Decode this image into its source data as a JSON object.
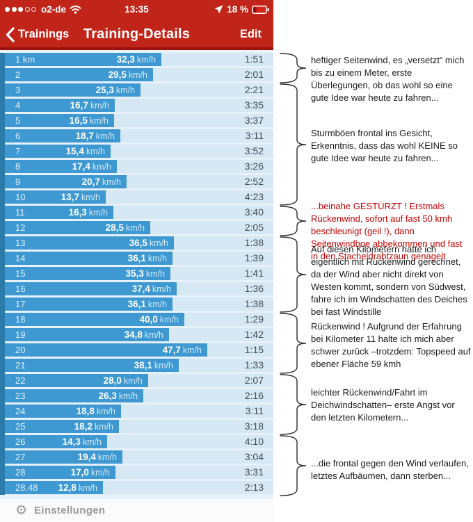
{
  "status_bar": {
    "signal_dots_filled": 3,
    "signal_dots_total": 5,
    "carrier": "o2-de",
    "time": "13:35",
    "battery_percent": "18 %"
  },
  "nav_bar": {
    "back_label": "Trainings",
    "title": "Training-Details",
    "edit_label": "Edit"
  },
  "units": {
    "speed_suffix": "km/h"
  },
  "rows": [
    {
      "km": "1 km",
      "speed": "32,3",
      "time": "1:51"
    },
    {
      "km": "2",
      "speed": "29,5",
      "time": "2:01"
    },
    {
      "km": "3",
      "speed": "25,3",
      "time": "2:21"
    },
    {
      "km": "4",
      "speed": "16,7",
      "time": "3:35"
    },
    {
      "km": "5",
      "speed": "16,5",
      "time": "3:37"
    },
    {
      "km": "6",
      "speed": "18,7",
      "time": "3:11"
    },
    {
      "km": "7",
      "speed": "15,4",
      "time": "3:52"
    },
    {
      "km": "8",
      "speed": "17,4",
      "time": "3:26"
    },
    {
      "km": "9",
      "speed": "20,7",
      "time": "2:52"
    },
    {
      "km": "10",
      "speed": "13,7",
      "time": "4:23"
    },
    {
      "km": "11",
      "speed": "16,3",
      "time": "3:40"
    },
    {
      "km": "12",
      "speed": "28,5",
      "time": "2:05"
    },
    {
      "km": "13",
      "speed": "36,5",
      "time": "1:38"
    },
    {
      "km": "14",
      "speed": "36,1",
      "time": "1:39"
    },
    {
      "km": "15",
      "speed": "35,3",
      "time": "1:41"
    },
    {
      "km": "16",
      "speed": "37,4",
      "time": "1:36"
    },
    {
      "km": "17",
      "speed": "36,1",
      "time": "1:38"
    },
    {
      "km": "18",
      "speed": "40,0",
      "time": "1:29"
    },
    {
      "km": "19",
      "speed": "34,8",
      "time": "1:42"
    },
    {
      "km": "20",
      "speed": "47,7",
      "time": "1:15"
    },
    {
      "km": "21",
      "speed": "38,1",
      "time": "1:33"
    },
    {
      "km": "22",
      "speed": "28,0",
      "time": "2:07"
    },
    {
      "km": "23",
      "speed": "26,3",
      "time": "2:16"
    },
    {
      "km": "24",
      "speed": "18,8",
      "time": "3:11"
    },
    {
      "km": "25",
      "speed": "18,2",
      "time": "3:18"
    },
    {
      "km": "26",
      "speed": "14,3",
      "time": "4:10"
    },
    {
      "km": "27",
      "speed": "19,4",
      "time": "3:04"
    },
    {
      "km": "28",
      "speed": "17,0",
      "time": "3:31"
    },
    {
      "km": "28.48",
      "speed": "12,8",
      "time": "2:13"
    }
  ],
  "annotations": [
    {
      "rows": [
        1,
        2
      ],
      "color": "black",
      "text": "heftiger Seitenwind, es „versetzt“ mich bis zu einem Meter, erste Überlegungen, ob das wohl so eine gute Idee war heute zu fahren..."
    },
    {
      "rows": [
        3,
        10
      ],
      "color": "black",
      "text": "Sturmböen frontal ins Gesicht, Erkenntnis, dass das wohl KEINE so gute Idee war heute zu fahren..."
    },
    {
      "rows": [
        11,
        12
      ],
      "color": "red",
      "text": "...beinahe GESTÜRZT !  Erstmals Rückenwind, sofort auf fast 50 kmh beschleunigt (geil !), dann Seitenwindboe abbekommen und fast in den Stacheldrahtzaun genagelt"
    },
    {
      "rows": [
        13,
        17
      ],
      "color": "black",
      "text": "Auf diesen Kilometern hatte ich eigentlich mit Rückenwind gerechnet, da der Wind aber nicht direkt von Westen kommt, sondern von Südwest, fahre ich im Windschatten des Deiches bei fast Windstille"
    },
    {
      "rows": [
        18,
        21
      ],
      "color": "black",
      "text": "Rückenwind ! Aufgrund  der Erfahrung bei Kilometer 11 halte ich mich aber schwer zurück –trotzdem: Topspeed auf ebener Fläche 59 kmh"
    },
    {
      "rows": [
        22,
        25
      ],
      "color": "black",
      "text": "leichter Rückenwind/Fahrt im Deichwindschatten– erste Angst vor den letzten Kilometern..."
    },
    {
      "rows": [
        26,
        29
      ],
      "color": "black",
      "text": "...die frontal gegen den Wind verlaufen, letztes Aufbäumen, dann sterben..."
    }
  ],
  "bottom_bar": {
    "settings_label": "Einstellungen"
  },
  "colors": {
    "header_red": "#c1251a",
    "header_dark_red": "#9d120b",
    "bar_blue": "#3e99d2",
    "bar_edge_blue": "#2c7cab",
    "row_bg": "#d6e8f4",
    "list_bg": "#e7f1f9",
    "annotation_red": "#c00000",
    "battery_fill_red": "#d4261a"
  }
}
